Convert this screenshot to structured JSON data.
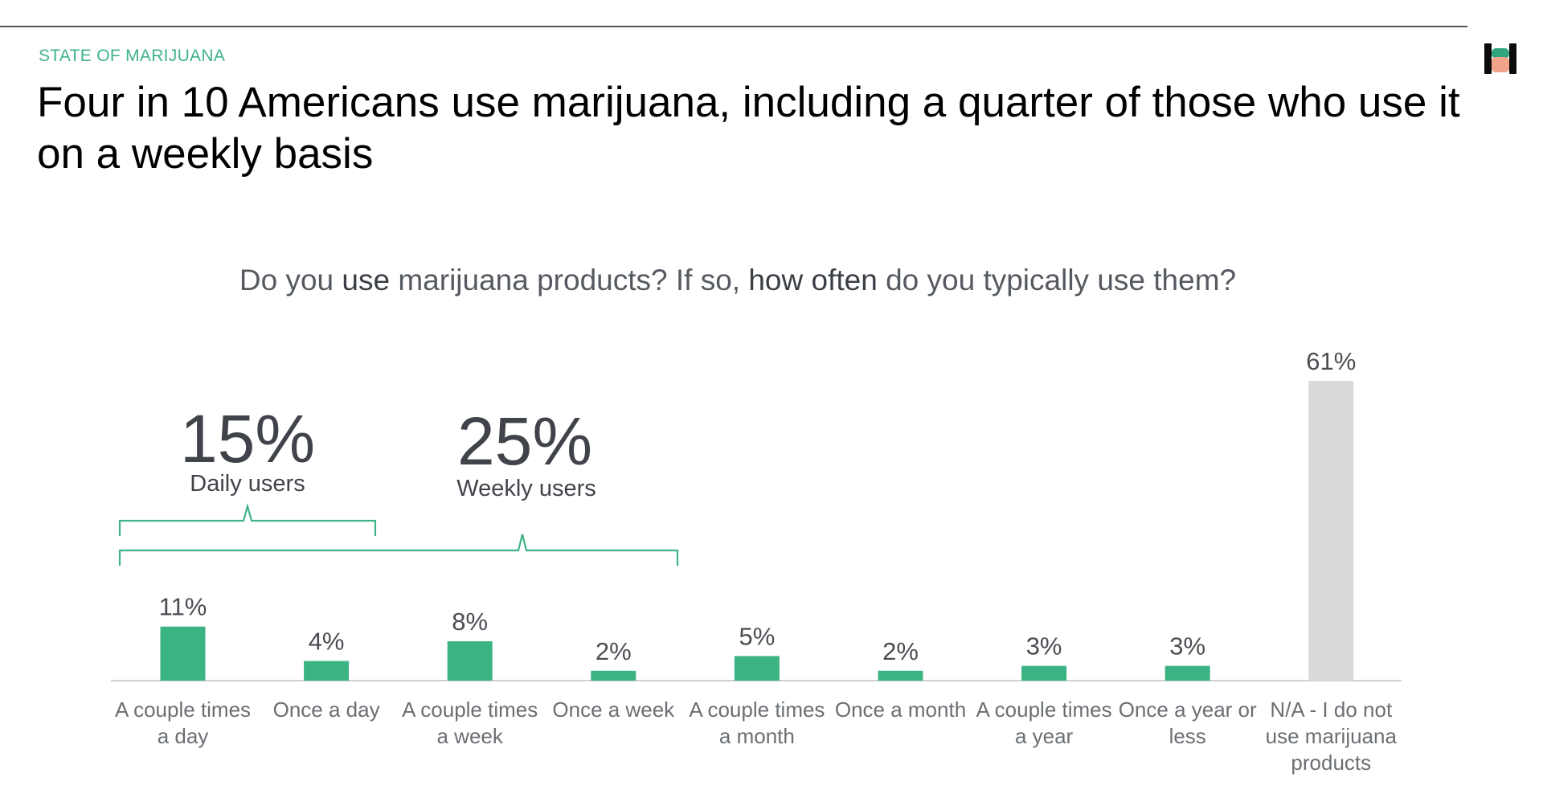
{
  "header": {
    "kicker": "STATE OF MARIJUANA",
    "headline": "Four in 10 Americans use marijuana, including a quarter of those who use it on a weekly basis",
    "logo_icon": "hims-logo-icon"
  },
  "chart_question": {
    "part1": "Do you ",
    "part2": "use",
    "part3": " marijuana products? If so, ",
    "part4": "how often",
    "part5": " do you typically use them?"
  },
  "callouts": [
    {
      "pct": "15%",
      "label": "Daily users"
    },
    {
      "pct": "25%",
      "label": "Weekly users"
    }
  ],
  "colors": {
    "user_bar": "#3cb383",
    "nonuser_bar": "#d9dadc",
    "accent": "#3fb386",
    "baseline": "#d0d0d0"
  },
  "chart_data": {
    "type": "bar",
    "title": "Do you use marijuana products? If so, how often do you typically use them?",
    "categories": [
      [
        "A couple times",
        "a day"
      ],
      [
        "Once a day"
      ],
      [
        "A couple times",
        "a week"
      ],
      [
        "Once a week"
      ],
      [
        "A couple times",
        "a month"
      ],
      [
        "Once a month"
      ],
      [
        "A couple times",
        "a year"
      ],
      [
        "Once a year or",
        "less"
      ],
      [
        "N/A - I do not",
        "use marijuana",
        "products"
      ]
    ],
    "values": [
      11,
      4,
      8,
      2,
      5,
      2,
      3,
      3,
      61
    ],
    "value_labels": [
      "11%",
      "4%",
      "8%",
      "2%",
      "5%",
      "2%",
      "3%",
      "3%",
      "61%"
    ],
    "bar_color_keys": [
      "user_bar",
      "user_bar",
      "user_bar",
      "user_bar",
      "user_bar",
      "user_bar",
      "user_bar",
      "user_bar",
      "nonuser_bar"
    ],
    "unit": "%",
    "ylim": [
      0,
      61
    ],
    "grid": false,
    "legend": "none"
  }
}
